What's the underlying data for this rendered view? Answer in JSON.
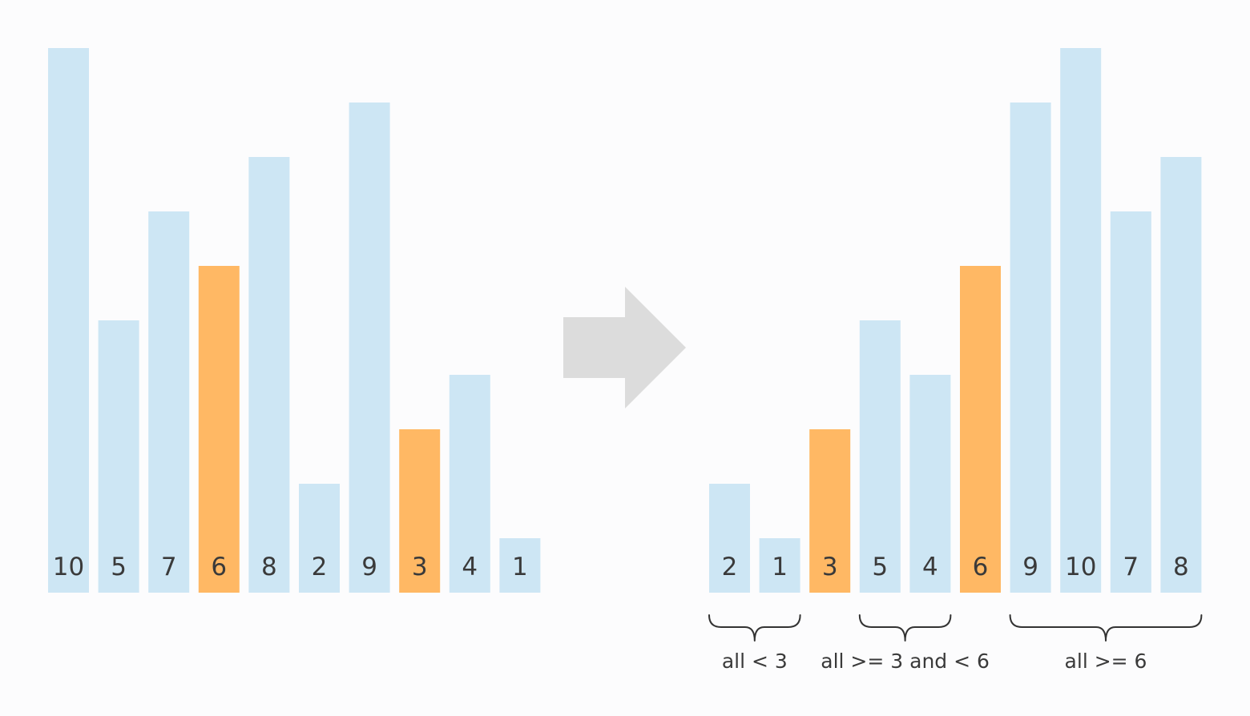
{
  "colors": {
    "bar": "#cde6f4",
    "pivot": "#ffb864",
    "arrow": "#dcdcdc",
    "text": "#3a3a3a",
    "background": "#fcfcfd"
  },
  "icons": {
    "arrow": "right-arrow-icon"
  },
  "before": {
    "values": [
      10,
      5,
      7,
      6,
      8,
      2,
      9,
      3,
      4,
      1
    ],
    "highlighted": [
      false,
      false,
      false,
      true,
      false,
      false,
      false,
      true,
      false,
      false
    ]
  },
  "after": {
    "values": [
      2,
      1,
      3,
      5,
      4,
      6,
      9,
      10,
      7,
      8
    ],
    "highlighted": [
      false,
      false,
      true,
      false,
      false,
      true,
      false,
      false,
      false,
      false
    ]
  },
  "groups": [
    {
      "label": "all < 3",
      "from_index": 0,
      "to_index": 1
    },
    {
      "label": "all >= 3 and < 6",
      "from_index": 3,
      "to_index": 4
    },
    {
      "label": "all >= 6",
      "from_index": 6,
      "to_index": 9
    }
  ]
}
